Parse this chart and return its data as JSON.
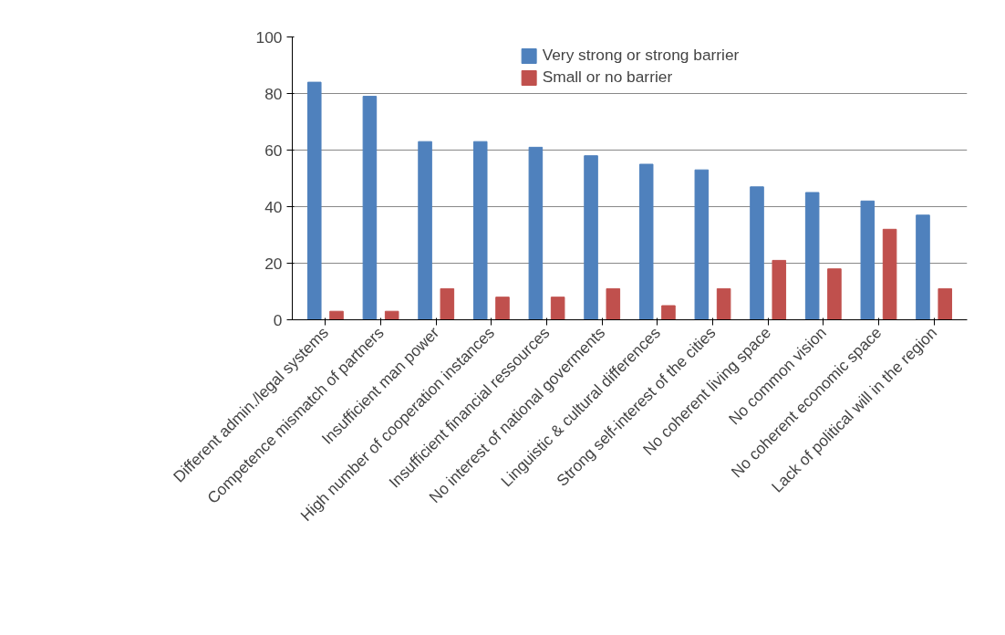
{
  "chart_data": {
    "type": "bar",
    "categories": [
      "Different admin./legal systems",
      "Competence mismatch of partners",
      "Insufficient man power",
      "High number of cooperation instances",
      "Insufficient financial ressources",
      "No interest of national goverments",
      "Linguistic & cultural differences",
      "Strong self-interest of the cities",
      "No coherent living space",
      "No common vision",
      "No coherent economic space",
      "Lack of political will in the region"
    ],
    "series": [
      {
        "name": "Very strong or strong barrier",
        "color": "#4f81bd",
        "values": [
          84,
          79,
          63,
          63,
          61,
          58,
          55,
          53,
          47,
          45,
          42,
          37
        ]
      },
      {
        "name": "Small or no barrier",
        "color": "#c0504d",
        "values": [
          3,
          3,
          11,
          8,
          8,
          11,
          5,
          11,
          21,
          18,
          32,
          11
        ]
      }
    ],
    "ylim": [
      0,
      100
    ],
    "yticks": [
      0,
      20,
      40,
      60,
      80,
      100
    ],
    "grid": "y",
    "legend": "top"
  }
}
